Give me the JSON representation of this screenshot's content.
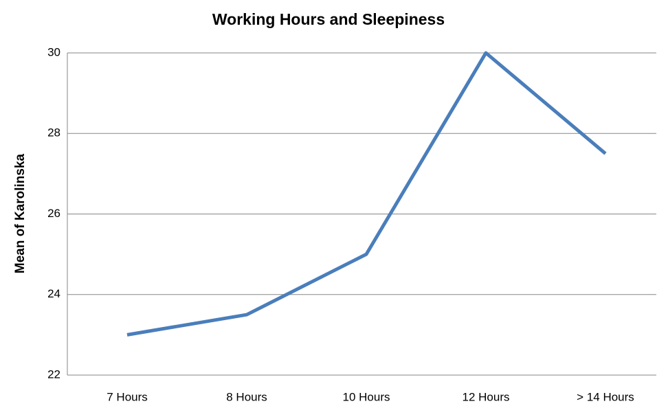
{
  "chart_data": {
    "type": "line",
    "title": "Working Hours and Sleepiness",
    "y_label": "Mean of Karolinska",
    "categories": [
      "7 Hours",
      "8 Hours",
      "10 Hours",
      "12 Hours",
      "> 14 Hours"
    ],
    "series": [
      {
        "name": "Mean of Karolinska",
        "color": "#4a7ebb",
        "values": [
          23,
          23.5,
          25,
          30,
          27.5
        ]
      }
    ],
    "ylim": [
      22,
      30
    ],
    "yticks": [
      22,
      24,
      26,
      28,
      30
    ],
    "grid": true,
    "legend": false
  }
}
